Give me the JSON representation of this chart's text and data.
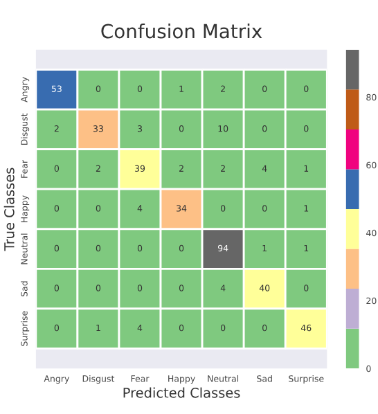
{
  "chart_data": {
    "type": "heatmap",
    "title": "Confusion Matrix",
    "xlabel": "Predicted Classes",
    "ylabel": "True Classes",
    "categories": [
      "Angry",
      "Disgust",
      "Fear",
      "Happy",
      "Neutral",
      "Sad",
      "Surprise"
    ],
    "y_categories": [
      "Angry",
      "Disgust",
      "Fear",
      "Happy",
      "Neutral",
      "Sad",
      "Surprise"
    ],
    "cells": [
      [
        53,
        0,
        0,
        1,
        2,
        0,
        0
      ],
      [
        2,
        33,
        3,
        0,
        10,
        0,
        0
      ],
      [
        0,
        2,
        39,
        2,
        2,
        4,
        1
      ],
      [
        0,
        0,
        4,
        34,
        0,
        0,
        1
      ],
      [
        0,
        0,
        0,
        0,
        94,
        1,
        1
      ],
      [
        0,
        0,
        0,
        0,
        4,
        40,
        0
      ],
      [
        0,
        1,
        4,
        0,
        0,
        0,
        46
      ]
    ],
    "colors": [
      "#7fc97f",
      "#beaed4",
      "#fdc086",
      "#ffff99",
      "#386cb0",
      "#f0027f",
      "#bf5b17",
      "#666666"
    ],
    "clim": [
      0,
      94
    ],
    "cticks": [
      0,
      20,
      40,
      60,
      80
    ],
    "data_labels": true
  }
}
